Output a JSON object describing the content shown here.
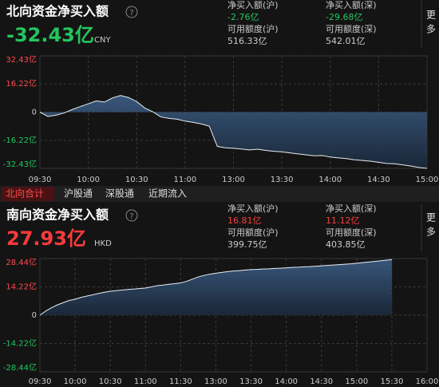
{
  "more": "更多",
  "tabs": [
    "北向合计",
    "沪股通",
    "深股通",
    "近期流入"
  ],
  "chart_data": [
    {
      "type": "line",
      "title": "北向资金净买入额",
      "help": "?",
      "headline": "-32.43亿",
      "headline_color": "#22c55e",
      "currency": "CNY",
      "stats": [
        {
          "label": "净买入额(沪)",
          "value": "-2.76亿",
          "color": "#22c55e"
        },
        {
          "label": "净买入额(深)",
          "value": "-29.68亿",
          "color": "#22c55e"
        },
        {
          "label": "可用额度(沪)",
          "value": "516.33亿",
          "color": "#cccccc"
        },
        {
          "label": "可用额度(深)",
          "value": "542.01亿",
          "color": "#cccccc"
        }
      ],
      "x_labels": [
        "09:30",
        "10:00",
        "10:30",
        "11:00",
        "13:00",
        "13:30",
        "14:00",
        "14:30",
        "15:00"
      ],
      "ylim": [
        -32.43,
        32.43
      ],
      "yticks": [
        {
          "value": 32.43,
          "label": "32.43亿"
        },
        {
          "value": 16.22,
          "label": "16.22亿"
        },
        0,
        {
          "value": -16.22,
          "label": "-16.22亿"
        },
        {
          "value": -32.43,
          "label": "-32.43亿"
        }
      ],
      "grid": true,
      "fill": true,
      "series": [
        {
          "color": "#e8eef5",
          "values": [
            0,
            -2.5,
            -1.8,
            -0.5,
            1.5,
            3.2,
            4.8,
            6.5,
            5.8,
            8.2,
            9.6,
            8.4,
            6.1,
            2.4,
            0.2,
            -2.8,
            -3.6,
            -4.1,
            -5.2,
            -5.9,
            -6.8,
            -8.1,
            -19.8,
            -20.6,
            -20.9,
            -21.3,
            -21.8,
            -21.4,
            -22.1,
            -22.6,
            -22.9,
            -23.5,
            -24.1,
            -24.6,
            -25.2,
            -25.0,
            -25.9,
            -26.4,
            -26.8,
            -27.5,
            -27.9,
            -28.3,
            -28.9,
            -29.6,
            -29.8,
            -30.4,
            -31.1,
            -31.9,
            -32.43
          ]
        }
      ]
    },
    {
      "type": "line",
      "title": "南向资金净买入额",
      "help": "?",
      "headline": "27.93亿",
      "headline_color": "#ff3b3b",
      "currency": "HKD",
      "stats": [
        {
          "label": "净买入额(沪)",
          "value": "16.81亿",
          "color": "#ff3b3b"
        },
        {
          "label": "净买入额(深)",
          "value": "11.12亿",
          "color": "#ff3b3b"
        },
        {
          "label": "可用额度(沪)",
          "value": "399.75亿",
          "color": "#cccccc"
        },
        {
          "label": "可用额度(深)",
          "value": "403.85亿",
          "color": "#cccccc"
        }
      ],
      "x_labels": [
        "09:30",
        "10:00",
        "10:30",
        "11:00",
        "11:30",
        "13:00",
        "13:30",
        "14:00",
        "14:30",
        "15:00",
        "15:30",
        "16:00"
      ],
      "ylim": [
        -28.44,
        28.44
      ],
      "yticks": [
        {
          "value": 28.44,
          "label": "28.44亿"
        },
        {
          "value": 14.22,
          "label": "14.22亿"
        },
        0,
        {
          "value": -14.22,
          "label": "-14.22亿"
        },
        {
          "value": -28.44,
          "label": "-28.44亿"
        }
      ],
      "grid": true,
      "fill": true,
      "series": [
        {
          "color": "#e8eef5",
          "values": [
            0,
            2.1,
            3.8,
            5.2,
            6.3,
            7.4,
            8.0,
            8.9,
            9.6,
            10.2,
            10.9,
            11.5,
            12.0,
            12.3,
            12.6,
            12.9,
            13.1,
            13.4,
            13.6,
            14.2,
            14.8,
            15.1,
            15.5,
            15.8,
            16.2,
            17.0,
            18.1,
            19.2,
            20.0,
            20.6,
            21.1,
            21.5,
            21.9,
            22.2,
            22.4,
            22.7,
            22.9,
            23.0,
            23.2,
            23.3,
            23.5,
            23.6,
            23.8,
            24.0,
            24.1,
            24.3,
            24.4,
            24.6,
            24.8,
            25.0,
            25.2,
            25.4,
            25.6,
            25.8,
            26.1,
            26.4,
            26.7,
            27.0,
            27.3,
            27.6,
            27.93,
            null,
            null,
            null,
            null,
            null,
            null
          ]
        }
      ]
    }
  ]
}
